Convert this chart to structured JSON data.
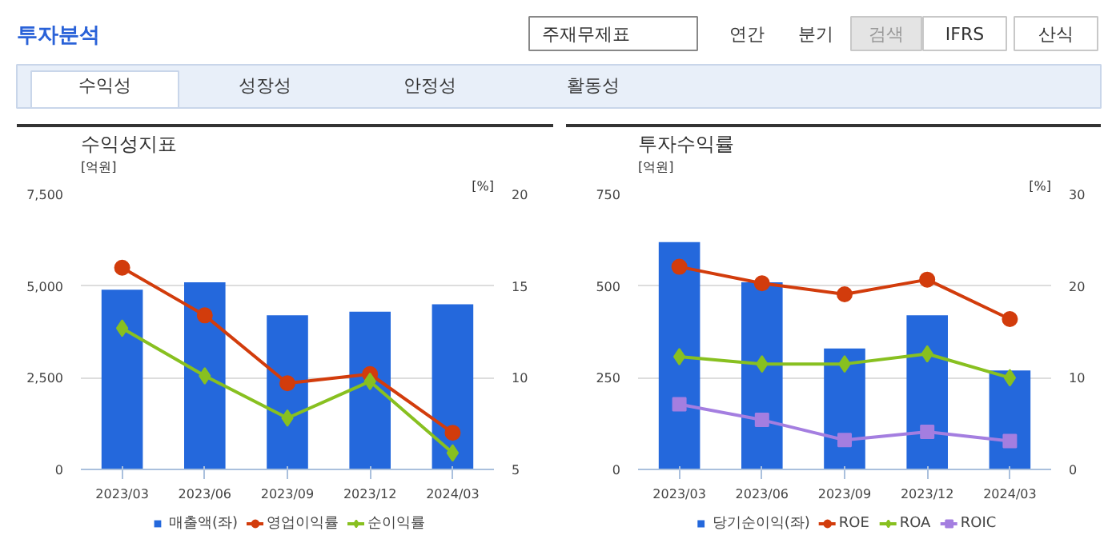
{
  "chart_data": [
    {
      "type": "other",
      "title": "투자분석",
      "annotations": [
        "주재무제표",
        "연간",
        "분기",
        "검색",
        "IFRS",
        "산식",
        "수익성",
        "성장성",
        "안정성",
        "활동성"
      ]
    },
    {
      "type": "bar",
      "title": "수익성지표",
      "ylabel": "[억원]",
      "y2label": "[%]",
      "categories": [
        "2023/03",
        "2023/06",
        "2023/09",
        "2023/12",
        "2024/03"
      ],
      "ylim": [
        0,
        7500
      ],
      "yticks": [
        {
          "value": 0,
          "label": "0"
        },
        {
          "value": 2500,
          "label": "2,500"
        },
        {
          "value": 5000,
          "label": "5,000"
        },
        {
          "value": 7500,
          "label": "7,500"
        }
      ],
      "y2lim": [
        5,
        20
      ],
      "y2ticks": [
        5,
        10,
        15,
        20
      ],
      "grid": "y",
      "legend": "bottom",
      "series": [
        {
          "name": "매출액(좌)",
          "type": "bar",
          "color": "#2468dc",
          "values": [
            4900,
            5100,
            4200,
            4300,
            4500
          ]
        },
        {
          "name": "영업이익률",
          "type": "line",
          "axis": "y2",
          "marker": "circle",
          "color": "#d23c0c",
          "values": [
            16.0,
            13.4,
            9.7,
            10.2,
            7.0
          ]
        },
        {
          "name": "순이익률",
          "type": "line",
          "axis": "y2",
          "marker": "diamond",
          "color": "#88c020",
          "values": [
            12.7,
            10.1,
            7.8,
            9.8,
            5.9
          ]
        }
      ]
    },
    {
      "type": "bar",
      "title": "투자수익률",
      "ylabel": "[억원]",
      "y2label": "[%]",
      "categories": [
        "2023/03",
        "2023/06",
        "2023/09",
        "2023/12",
        "2024/03"
      ],
      "ylim": [
        0,
        750
      ],
      "yticks": [
        0,
        250,
        500,
        750
      ],
      "y2lim": [
        0,
        30
      ],
      "y2ticks": [
        0,
        10,
        20,
        30
      ],
      "grid": "y",
      "legend": "bottom",
      "series": [
        {
          "name": "당기순이익(좌)",
          "type": "bar",
          "color": "#2468dc",
          "values": [
            620,
            510,
            330,
            420,
            270
          ]
        },
        {
          "name": "ROE",
          "type": "line",
          "axis": "y2",
          "marker": "circle",
          "color": "#d23c0c",
          "values": [
            22.1,
            20.3,
            19.1,
            20.7,
            16.4
          ]
        },
        {
          "name": "ROA",
          "type": "line",
          "axis": "y2",
          "marker": "diamond",
          "color": "#88c020",
          "values": [
            12.3,
            11.5,
            11.5,
            12.6,
            10.0
          ]
        },
        {
          "name": "ROIC",
          "type": "line",
          "axis": "y2",
          "marker": "square",
          "color": "#a47ee0",
          "values": [
            7.1,
            5.4,
            3.2,
            4.1,
            3.1
          ]
        }
      ]
    }
  ]
}
